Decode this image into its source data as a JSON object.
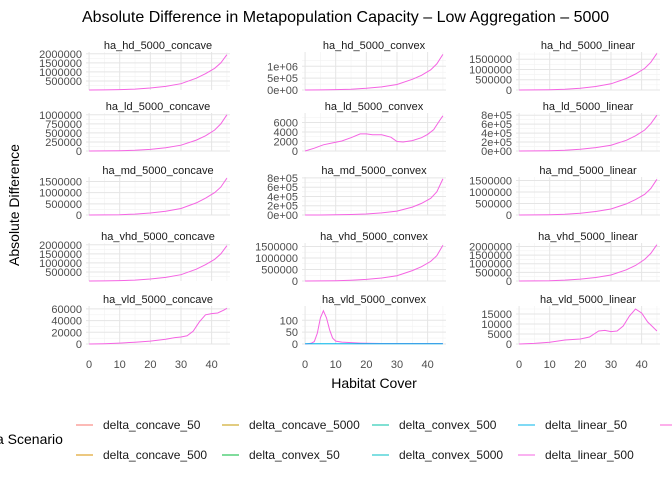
{
  "title": "Absolute Difference in Metapopulation Capacity – Low Aggregation – 5000",
  "chart_data": {
    "type": "line",
    "title": "Absolute Difference in Metapopulation Capacity – Low Aggregation – 5000",
    "xlabel": "Habitat Cover",
    "ylabel": "Absolute Difference",
    "xlim": [
      -1,
      46
    ],
    "x_ticks": [
      "0",
      "10",
      "20",
      "30",
      "40"
    ],
    "grid": true,
    "legend": {
      "title": "a Scenario",
      "placement": "bottom",
      "entries": [
        {
          "name": "delta_concave_50",
          "color": "#f8766d"
        },
        {
          "name": "delta_concave_5000",
          "color": "#c49a00"
        },
        {
          "name": "delta_convex_500",
          "color": "#00c1a7"
        },
        {
          "name": "delta_linear_50",
          "color": "#00b6eb"
        },
        {
          "name": "",
          "color": "#fb61d7"
        },
        {
          "name": "delta_concave_500",
          "color": "#d89000"
        },
        {
          "name": "delta_convex_50",
          "color": "#00ba38"
        },
        {
          "name": "delta_convex_5000",
          "color": "#00bfc4"
        },
        {
          "name": "delta_linear_500",
          "color": "#f564e3"
        }
      ]
    },
    "panels": [
      {
        "label": "ha_hd_5000_concave",
        "ylim": [
          0,
          2100000
        ],
        "y_ticks": [
          {
            "v": 500000,
            "t": "500000"
          },
          {
            "v": 1000000,
            "t": "1000000"
          },
          {
            "v": 1500000,
            "t": "1500000"
          },
          {
            "v": 2000000,
            "t": "2000000"
          }
        ],
        "series": [
          {
            "color": "#f564e3",
            "x": [
              0,
              5,
              10,
              15,
              20,
              25,
              30,
              35,
              38,
              41,
              43,
              45
            ],
            "y": [
              0,
              5000,
              20000,
              50000,
              110000,
              200000,
              350000,
              650000,
              900000,
              1200000,
              1500000,
              1950000
            ]
          }
        ]
      },
      {
        "label": "ha_hd_5000_convex",
        "ylim": [
          0,
          1600000
        ],
        "y_ticks": [
          {
            "v": 0,
            "t": "0e+00"
          },
          {
            "v": 500000,
            "t": "5e+05"
          },
          {
            "v": 1000000,
            "t": "1e+06"
          }
        ],
        "series": [
          {
            "color": "#f564e3",
            "x": [
              0,
              5,
              10,
              15,
              20,
              25,
              30,
              35,
              38,
              41,
              43,
              45
            ],
            "y": [
              0,
              5000,
              15000,
              35000,
              70000,
              130000,
              230000,
              450000,
              620000,
              850000,
              1100000,
              1500000
            ]
          }
        ]
      },
      {
        "label": "ha_hd_5000_linear",
        "ylim": [
          0,
          1850000
        ],
        "y_ticks": [
          {
            "v": 0,
            "t": "0"
          },
          {
            "v": 500000,
            "t": "500000"
          },
          {
            "v": 1000000,
            "t": "1000000"
          },
          {
            "v": 1500000,
            "t": "1500000"
          }
        ],
        "series": [
          {
            "color": "#f564e3",
            "x": [
              0,
              5,
              10,
              15,
              20,
              25,
              30,
              35,
              38,
              41,
              43,
              45
            ],
            "y": [
              0,
              5000,
              15000,
              40000,
              90000,
              170000,
              300000,
              560000,
              780000,
              1050000,
              1350000,
              1780000
            ]
          }
        ]
      },
      {
        "label": "ha_ld_5000_concave",
        "ylim": [
          0,
          1050000
        ],
        "y_ticks": [
          {
            "v": 0,
            "t": "0"
          },
          {
            "v": 250000,
            "t": "250000"
          },
          {
            "v": 500000,
            "t": "500000"
          },
          {
            "v": 750000,
            "t": "750000"
          },
          {
            "v": 1000000,
            "t": "1000000"
          }
        ],
        "series": [
          {
            "color": "#f564e3",
            "x": [
              0,
              5,
              10,
              15,
              20,
              25,
              30,
              35,
              38,
              41,
              43,
              45
            ],
            "y": [
              0,
              2000,
              8000,
              20000,
              45000,
              90000,
              160000,
              300000,
              420000,
              580000,
              750000,
              1000000
            ]
          }
        ]
      },
      {
        "label": "ha_ld_5000_convex",
        "ylim": [
          0,
          8000
        ],
        "y_ticks": [
          {
            "v": 0,
            "t": "0"
          },
          {
            "v": 2000,
            "t": "2000"
          },
          {
            "v": 4000,
            "t": "4000"
          },
          {
            "v": 6000,
            "t": "6000"
          }
        ],
        "series": [
          {
            "color": "#f564e3",
            "x": [
              0,
              3,
              6,
              9,
              12,
              15,
              18,
              20,
              22,
              25,
              28,
              30,
              32,
              35,
              38,
              40,
              42,
              44,
              45
            ],
            "y": [
              0,
              600,
              1300,
              1700,
              2100,
              2800,
              3600,
              3600,
              3400,
              3400,
              2900,
              2000,
              1900,
              2200,
              2800,
              3500,
              4500,
              6500,
              7400
            ]
          }
        ]
      },
      {
        "label": "ha_ld_5000_linear",
        "ylim": [
          0,
          850000
        ],
        "y_ticks": [
          {
            "v": 0,
            "t": "0e+00"
          },
          {
            "v": 200000,
            "t": "2e+05"
          },
          {
            "v": 400000,
            "t": "4e+05"
          },
          {
            "v": 600000,
            "t": "6e+05"
          },
          {
            "v": 800000,
            "t": "8e+05"
          }
        ],
        "series": [
          {
            "color": "#f564e3",
            "x": [
              0,
              5,
              10,
              15,
              20,
              25,
              30,
              35,
              38,
              41,
              43,
              45
            ],
            "y": [
              0,
              2000,
              7000,
              18000,
              40000,
              75000,
              130000,
              240000,
              340000,
              470000,
              610000,
              800000
            ]
          }
        ]
      },
      {
        "label": "ha_md_5000_concave",
        "ylim": [
          0,
          1700000
        ],
        "y_ticks": [
          {
            "v": 0,
            "t": "0"
          },
          {
            "v": 500000,
            "t": "500000"
          },
          {
            "v": 1000000,
            "t": "1000000"
          },
          {
            "v": 1500000,
            "t": "1500000"
          }
        ],
        "series": [
          {
            "color": "#f564e3",
            "x": [
              0,
              5,
              10,
              15,
              20,
              25,
              30,
              35,
              38,
              41,
              43,
              45
            ],
            "y": [
              0,
              4000,
              15000,
              40000,
              90000,
              170000,
              290000,
              540000,
              750000,
              1000000,
              1250000,
              1650000
            ]
          }
        ]
      },
      {
        "label": "ha_md_5000_convex",
        "ylim": [
          0,
          820000
        ],
        "y_ticks": [
          {
            "v": 0,
            "t": "0e+00"
          },
          {
            "v": 200000,
            "t": "2e+05"
          },
          {
            "v": 400000,
            "t": "4e+05"
          },
          {
            "v": 600000,
            "t": "6e+05"
          },
          {
            "v": 800000,
            "t": "8e+05"
          }
        ],
        "series": [
          {
            "color": "#f564e3",
            "x": [
              0,
              5,
              10,
              15,
              20,
              25,
              30,
              35,
              38,
              41,
              43,
              45
            ],
            "y": [
              0,
              1000,
              4000,
              10000,
              22000,
              45000,
              85000,
              170000,
              250000,
              360000,
              500000,
              780000
            ]
          }
        ]
      },
      {
        "label": "ha_md_5000_linear",
        "ylim": [
          0,
          1650000
        ],
        "y_ticks": [
          {
            "v": 0,
            "t": "0"
          },
          {
            "v": 500000,
            "t": "500000"
          },
          {
            "v": 1000000,
            "t": "1000000"
          },
          {
            "v": 1500000,
            "t": "1500000"
          }
        ],
        "series": [
          {
            "color": "#f564e3",
            "x": [
              0,
              5,
              10,
              15,
              20,
              25,
              30,
              35,
              38,
              41,
              43,
              45
            ],
            "y": [
              0,
              4000,
              14000,
              36000,
              80000,
              150000,
              260000,
              480000,
              670000,
              900000,
              1150000,
              1550000
            ]
          }
        ]
      },
      {
        "label": "ha_vhd_5000_concave",
        "ylim": [
          0,
          2100000
        ],
        "y_ticks": [
          {
            "v": 500000,
            "t": "500000"
          },
          {
            "v": 1000000,
            "t": "1000000"
          },
          {
            "v": 1500000,
            "t": "1500000"
          },
          {
            "v": 2000000,
            "t": "2000000"
          }
        ],
        "series": [
          {
            "color": "#f564e3",
            "x": [
              0,
              5,
              10,
              15,
              20,
              25,
              30,
              35,
              38,
              41,
              43,
              45
            ],
            "y": [
              0,
              5000,
              20000,
              50000,
              110000,
              200000,
              350000,
              650000,
              900000,
              1200000,
              1500000,
              1950000
            ]
          }
        ]
      },
      {
        "label": "ha_vhd_5000_convex",
        "ylim": [
          0,
          1650000
        ],
        "y_ticks": [
          {
            "v": 0,
            "t": "0"
          },
          {
            "v": 500000,
            "t": "500000"
          },
          {
            "v": 1000000,
            "t": "1000000"
          },
          {
            "v": 1500000,
            "t": "1500000"
          }
        ],
        "series": [
          {
            "color": "#f564e3",
            "x": [
              0,
              5,
              10,
              15,
              20,
              25,
              30,
              35,
              38,
              41,
              43,
              45
            ],
            "y": [
              0,
              5000,
              15000,
              35000,
              70000,
              130000,
              230000,
              450000,
              620000,
              850000,
              1100000,
              1550000
            ]
          }
        ]
      },
      {
        "label": "ha_vhd_5000_linear",
        "ylim": [
          0,
          2200000
        ],
        "y_ticks": [
          {
            "v": 0,
            "t": "0"
          },
          {
            "v": 500000,
            "t": "500000"
          },
          {
            "v": 1000000,
            "t": "1000000"
          },
          {
            "v": 1500000,
            "t": "1500000"
          },
          {
            "v": 2000000,
            "t": "2000000"
          }
        ],
        "series": [
          {
            "color": "#f564e3",
            "x": [
              0,
              5,
              10,
              15,
              20,
              25,
              30,
              35,
              38,
              41,
              43,
              45
            ],
            "y": [
              0,
              5000,
              20000,
              50000,
              110000,
              200000,
              350000,
              650000,
              900000,
              1250000,
              1600000,
              2100000
            ]
          }
        ]
      },
      {
        "label": "ha_vld_5000_concave",
        "ylim": [
          0,
          65000
        ],
        "y_ticks": [
          {
            "v": 0,
            "t": "0"
          },
          {
            "v": 20000,
            "t": "20000"
          },
          {
            "v": 40000,
            "t": "40000"
          },
          {
            "v": 60000,
            "t": "60000"
          }
        ],
        "series": [
          {
            "color": "#f564e3",
            "x": [
              0,
              5,
              10,
              15,
              20,
              25,
              28,
              30,
              32,
              34,
              36,
              38,
              40,
              42,
              44,
              45
            ],
            "y": [
              0,
              500,
              1500,
              3000,
              5000,
              8000,
              11000,
              12000,
              14000,
              22000,
              38000,
              50000,
              52000,
              53000,
              58000,
              61000
            ]
          }
        ]
      },
      {
        "label": "ha_vld_5000_convex",
        "ylim": [
          0,
          160
        ],
        "y_ticks": [
          {
            "v": 0,
            "t": "0"
          },
          {
            "v": 50,
            "t": "50"
          },
          {
            "v": 100,
            "t": "100"
          }
        ],
        "series": [
          {
            "color": "#f564e3",
            "x": [
              0,
              2,
              3,
              4,
              5,
              6,
              7,
              8,
              9,
              10,
              12,
              15,
              18,
              20,
              25,
              30,
              35,
              40,
              45
            ],
            "y": [
              0,
              3,
              10,
              45,
              110,
              140,
              110,
              60,
              25,
              12,
              8,
              6,
              4,
              3,
              2,
              2,
              2,
              2,
              2
            ]
          },
          {
            "color": "#00b6eb",
            "x": [
              0,
              5,
              10,
              15,
              20,
              25,
              30,
              35,
              40,
              45
            ],
            "y": [
              1,
              1,
              1,
              1,
              1,
              1,
              1,
              1,
              1,
              1
            ]
          }
        ]
      },
      {
        "label": "ha_vld_5000_linear",
        "ylim": [
          0,
          19000
        ],
        "y_ticks": [
          {
            "v": 0,
            "t": "0"
          },
          {
            "v": 5000,
            "t": "5000"
          },
          {
            "v": 10000,
            "t": "10000"
          },
          {
            "v": 15000,
            "t": "15000"
          }
        ],
        "series": [
          {
            "color": "#f564e3",
            "x": [
              0,
              5,
              10,
              15,
              20,
              23,
              26,
              28,
              30,
              32,
              34,
              36,
              38,
              40,
              42,
              44,
              45
            ],
            "y": [
              0,
              300,
              900,
              2000,
              2500,
              3500,
              6500,
              6800,
              6200,
              6500,
              9000,
              14000,
              17500,
              15500,
              11000,
              8000,
              6500
            ]
          }
        ]
      }
    ]
  }
}
